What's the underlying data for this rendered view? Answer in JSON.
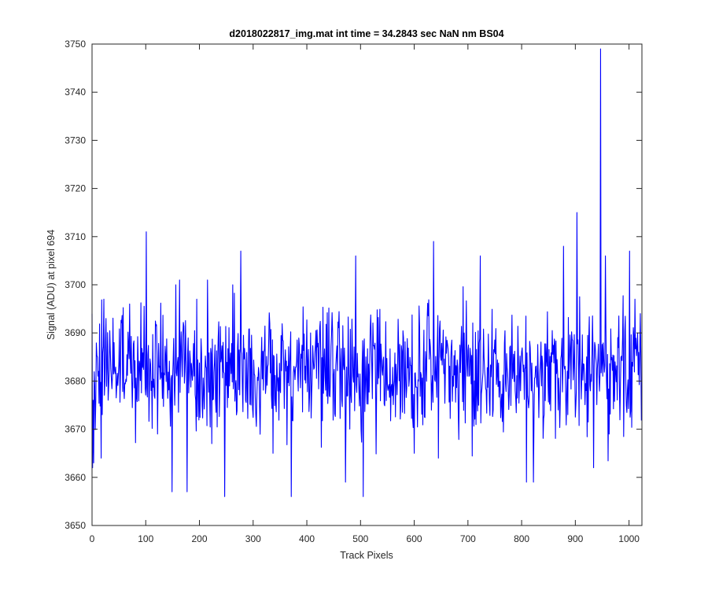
{
  "chart_data": {
    "type": "line",
    "title": "d2018022817_img.mat int time = 34.2843 sec  NaN nm BS04",
    "xlabel": "Track Pixels",
    "ylabel": "Signal (ADU) at pixel 694",
    "xlim": [
      0,
      1024
    ],
    "ylim": [
      3650,
      3750
    ],
    "xticks": [
      0,
      100,
      200,
      300,
      400,
      500,
      600,
      700,
      800,
      900,
      1000
    ],
    "yticks": [
      3650,
      3660,
      3670,
      3680,
      3690,
      3700,
      3710,
      3720,
      3730,
      3740,
      3750
    ],
    "grid": false,
    "legend": "none",
    "series": [
      {
        "color": "#0000ff",
        "noise_estimate": {
          "n_points": 1024,
          "mean": 3682.5,
          "std": 7.5
        },
        "notable_points": [
          {
            "x": 1,
            "y": 3662
          },
          {
            "x": 3,
            "y": 3663
          },
          {
            "x": 17,
            "y": 3664
          },
          {
            "x": 22,
            "y": 3697
          },
          {
            "x": 26,
            "y": 3693
          },
          {
            "x": 101,
            "y": 3711
          },
          {
            "x": 149,
            "y": 3657
          },
          {
            "x": 156,
            "y": 3700
          },
          {
            "x": 163,
            "y": 3701
          },
          {
            "x": 177,
            "y": 3657
          },
          {
            "x": 195,
            "y": 3697
          },
          {
            "x": 223,
            "y": 3667
          },
          {
            "x": 247,
            "y": 3656
          },
          {
            "x": 262,
            "y": 3700
          },
          {
            "x": 277,
            "y": 3707
          },
          {
            "x": 337,
            "y": 3665
          },
          {
            "x": 371,
            "y": 3656
          },
          {
            "x": 472,
            "y": 3659
          },
          {
            "x": 491,
            "y": 3706
          },
          {
            "x": 505,
            "y": 3656
          },
          {
            "x": 600,
            "y": 3665
          },
          {
            "x": 636,
            "y": 3709
          },
          {
            "x": 645,
            "y": 3664
          },
          {
            "x": 723,
            "y": 3706
          },
          {
            "x": 809,
            "y": 3659
          },
          {
            "x": 822,
            "y": 3659
          },
          {
            "x": 878,
            "y": 3708
          },
          {
            "x": 903,
            "y": 3715
          },
          {
            "x": 934,
            "y": 3662
          },
          {
            "x": 947,
            "y": 3749
          },
          {
            "x": 956,
            "y": 3706
          },
          {
            "x": 1001,
            "y": 3707
          },
          {
            "x": 1011,
            "y": 3697
          },
          {
            "x": 1021,
            "y": 3694
          }
        ]
      }
    ]
  }
}
